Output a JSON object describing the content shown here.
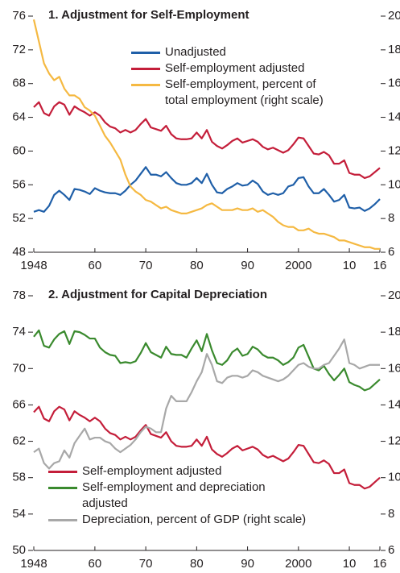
{
  "chart_data": [
    {
      "type": "line",
      "title": "1. Adjustment for Self-Employment",
      "legend": "upper center",
      "x": [
        1948,
        1949,
        1950,
        1951,
        1952,
        1953,
        1954,
        1955,
        1956,
        1957,
        1958,
        1959,
        1960,
        1961,
        1962,
        1963,
        1964,
        1965,
        1966,
        1967,
        1968,
        1969,
        1970,
        1971,
        1972,
        1973,
        1974,
        1975,
        1976,
        1977,
        1978,
        1979,
        1980,
        1981,
        1982,
        1983,
        1984,
        1985,
        1986,
        1987,
        1988,
        1989,
        1990,
        1991,
        1992,
        1993,
        1994,
        1995,
        1996,
        1997,
        1998,
        1999,
        2000,
        2001,
        2002,
        2003,
        2004,
        2005,
        2006,
        2007,
        2008,
        2009,
        2010,
        2011,
        2012,
        2013,
        2014,
        2015,
        2016
      ],
      "xlim": [
        1948,
        2016
      ],
      "xticks": [
        1948,
        {
          "value": 1960,
          "label": "60"
        },
        {
          "value": 1970,
          "label": "70"
        },
        {
          "value": 1980,
          "label": "80"
        },
        {
          "value": 1990,
          "label": "90"
        },
        2000,
        {
          "value": 2010,
          "label": "10"
        },
        {
          "value": 2016,
          "label": "16"
        }
      ],
      "ylim": [
        48,
        76
      ],
      "yticks": [
        48,
        52,
        56,
        60,
        64,
        68,
        72,
        76
      ],
      "y2lim": [
        6,
        20
      ],
      "y2ticks": [
        6,
        8,
        10,
        12,
        14,
        16,
        18,
        20
      ],
      "series": [
        {
          "name": "Unadjusted",
          "color": "#1f5fa8",
          "values": [
            52.8,
            53,
            52.8,
            53.5,
            54.8,
            55.3,
            54.8,
            54.2,
            55.5,
            55.4,
            55.2,
            54.9,
            55.6,
            55.3,
            55.1,
            55,
            55,
            54.8,
            55.3,
            56,
            56.5,
            57.3,
            58.1,
            57.2,
            57.2,
            57,
            57.5,
            56.8,
            56.2,
            56,
            56,
            56.2,
            56.8,
            56.2,
            57.3,
            56,
            55.1,
            55,
            55.5,
            55.8,
            56.2,
            55.9,
            56,
            56.5,
            56.1,
            55.2,
            54.8,
            55,
            54.8,
            55,
            55.8,
            56,
            56.8,
            56.9,
            55.8,
            55,
            55,
            55.5,
            54.8,
            54,
            54.2,
            54.8,
            53.3,
            53.2,
            53.3,
            52.9,
            53.2,
            53.7,
            54.3
          ]
        },
        {
          "name": "Self-employment adjusted",
          "color": "#c41e3a",
          "values": [
            65.2,
            65.8,
            64.5,
            64.2,
            65.3,
            65.8,
            65.5,
            64.3,
            65.3,
            64.9,
            64.6,
            64.2,
            64.6,
            64.2,
            63.4,
            62.9,
            62.7,
            62.2,
            62.5,
            62.2,
            62.5,
            63.2,
            63.8,
            62.8,
            62.6,
            62.4,
            63,
            62,
            61.5,
            61.4,
            61.4,
            61.5,
            62.2,
            61.5,
            62.5,
            61.1,
            60.6,
            60.3,
            60.7,
            61.2,
            61.5,
            61,
            61.2,
            61.4,
            61.1,
            60.5,
            60.2,
            60.4,
            60.1,
            59.8,
            60.1,
            60.8,
            61.6,
            61.5,
            60.6,
            59.7,
            59.6,
            59.9,
            59.5,
            58.5,
            58.5,
            58.9,
            57.4,
            57.2,
            57.2,
            56.8,
            57,
            57.5,
            58
          ]
        },
        {
          "name": "Self-employment, percent of total employment (right scale)",
          "color": "#f5b942",
          "axis": "y2",
          "values": [
            19.8,
            18.5,
            17.2,
            16.6,
            16.2,
            16.4,
            15.7,
            15.3,
            15.3,
            15.1,
            14.6,
            14.4,
            14.1,
            13.5,
            12.9,
            12.5,
            12,
            11.5,
            10.6,
            9.9,
            9.6,
            9.4,
            9.1,
            9,
            8.8,
            8.6,
            8.7,
            8.5,
            8.4,
            8.3,
            8.3,
            8.4,
            8.5,
            8.6,
            8.8,
            8.9,
            8.7,
            8.5,
            8.5,
            8.5,
            8.6,
            8.5,
            8.5,
            8.6,
            8.4,
            8.5,
            8.3,
            8.1,
            7.8,
            7.6,
            7.5,
            7.5,
            7.3,
            7.3,
            7.4,
            7.2,
            7.1,
            7.1,
            7,
            6.9,
            6.7,
            6.7,
            6.6,
            6.5,
            6.4,
            6.3,
            6.3,
            6.2,
            6.2
          ]
        }
      ]
    },
    {
      "type": "line",
      "title": "2. Adjustment for Capital Depreciation",
      "legend": "lower left",
      "x": [
        1948,
        1949,
        1950,
        1951,
        1952,
        1953,
        1954,
        1955,
        1956,
        1957,
        1958,
        1959,
        1960,
        1961,
        1962,
        1963,
        1964,
        1965,
        1966,
        1967,
        1968,
        1969,
        1970,
        1971,
        1972,
        1973,
        1974,
        1975,
        1976,
        1977,
        1978,
        1979,
        1980,
        1981,
        1982,
        1983,
        1984,
        1985,
        1986,
        1987,
        1988,
        1989,
        1990,
        1991,
        1992,
        1993,
        1994,
        1995,
        1996,
        1997,
        1998,
        1999,
        2000,
        2001,
        2002,
        2003,
        2004,
        2005,
        2006,
        2007,
        2008,
        2009,
        2010,
        2011,
        2012,
        2013,
        2014,
        2015,
        2016
      ],
      "xlim": [
        1948,
        2016
      ],
      "xticks": [
        1948,
        {
          "value": 1960,
          "label": "60"
        },
        {
          "value": 1970,
          "label": "70"
        },
        {
          "value": 1980,
          "label": "80"
        },
        {
          "value": 1990,
          "label": "90"
        },
        2000,
        {
          "value": 2010,
          "label": "10"
        },
        {
          "value": 2016,
          "label": "16"
        }
      ],
      "ylim": [
        50,
        78
      ],
      "yticks": [
        50,
        54,
        58,
        62,
        66,
        70,
        74,
        78
      ],
      "y2lim": [
        6,
        20
      ],
      "y2ticks": [
        6,
        8,
        10,
        12,
        14,
        16,
        18,
        20
      ],
      "series": [
        {
          "name": "Self-employment adjusted",
          "color": "#c41e3a",
          "values": [
            65.2,
            65.8,
            64.5,
            64.2,
            65.3,
            65.8,
            65.5,
            64.3,
            65.3,
            64.9,
            64.6,
            64.2,
            64.6,
            64.2,
            63.4,
            62.9,
            62.7,
            62.2,
            62.5,
            62.2,
            62.5,
            63.2,
            63.8,
            62.8,
            62.6,
            62.4,
            63,
            62,
            61.5,
            61.4,
            61.4,
            61.5,
            62.2,
            61.5,
            62.5,
            61.1,
            60.6,
            60.3,
            60.7,
            61.2,
            61.5,
            61,
            61.2,
            61.4,
            61.1,
            60.5,
            60.2,
            60.4,
            60.1,
            59.8,
            60.1,
            60.8,
            61.6,
            61.5,
            60.6,
            59.7,
            59.6,
            59.9,
            59.5,
            58.5,
            58.5,
            58.9,
            57.4,
            57.2,
            57.2,
            56.8,
            57,
            57.5,
            58
          ]
        },
        {
          "name": "Self-employment and depreciation adjusted",
          "color": "#3a8a2e",
          "values": [
            73.5,
            74.2,
            72.5,
            72.3,
            73.2,
            73.8,
            74.1,
            72.7,
            74.1,
            74,
            73.7,
            73.3,
            73.3,
            72.3,
            71.8,
            71.5,
            71.4,
            70.6,
            70.7,
            70.6,
            70.8,
            71.7,
            72.8,
            71.8,
            71.5,
            71.2,
            72.4,
            71.6,
            71.5,
            71.5,
            71.2,
            72.2,
            73.1,
            71.9,
            73.8,
            72,
            70.6,
            70.4,
            70.9,
            71.8,
            72.2,
            71.4,
            71.6,
            72.4,
            72.1,
            71.5,
            71.2,
            71.2,
            70.9,
            70.4,
            70.7,
            71.2,
            72.3,
            72.6,
            71.3,
            70,
            69.8,
            70.3,
            69.4,
            68.7,
            69.3,
            70,
            68.5,
            68.2,
            68,
            67.6,
            67.8,
            68.3,
            68.8
          ]
        },
        {
          "name": "Depreciation, percent of GDP (right scale)",
          "color": "#a8a8a8",
          "axis": "y2",
          "values": [
            11.4,
            11.6,
            10.8,
            10.5,
            10.8,
            10.9,
            11.5,
            11.1,
            11.9,
            12.3,
            12.7,
            12.1,
            12.2,
            12.2,
            12,
            11.9,
            11.6,
            11.4,
            11.6,
            11.8,
            12.1,
            12.5,
            12.8,
            12.7,
            12.5,
            12.5,
            13.8,
            14.5,
            14.2,
            14.2,
            14.2,
            14.7,
            15.3,
            15.8,
            16.8,
            16.2,
            15.3,
            15.2,
            15.5,
            15.6,
            15.6,
            15.5,
            15.6,
            15.9,
            15.8,
            15.6,
            15.5,
            15.4,
            15.3,
            15.4,
            15.6,
            15.9,
            16.2,
            16.3,
            16.1,
            16,
            16,
            16.2,
            16.3,
            16.7,
            17.1,
            17.6,
            16.3,
            16.2,
            16,
            16.1,
            16.2,
            16.2,
            16.2
          ]
        }
      ]
    }
  ]
}
